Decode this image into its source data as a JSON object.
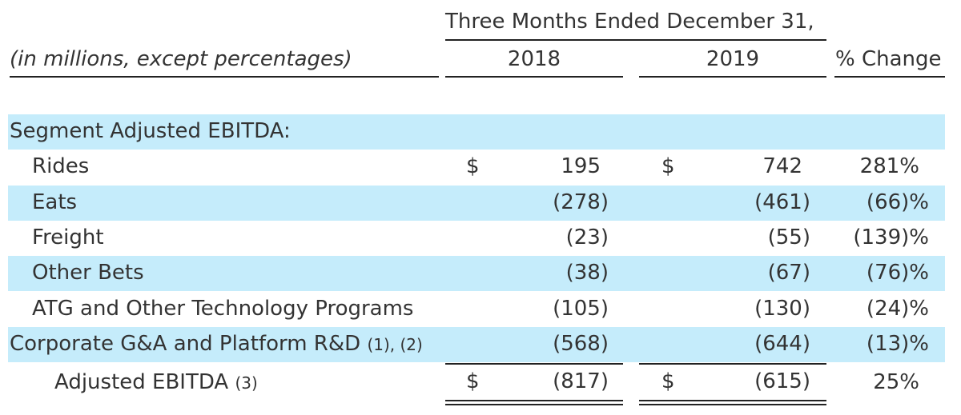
{
  "header": {
    "period_title": "Three Months Ended December 31,",
    "row_label": "(in millions, except percentages)",
    "col_2018": "2018",
    "col_2019": "2019",
    "col_change": "% Change"
  },
  "section_label": "Segment Adjusted EBITDA:",
  "currency_symbol": "$",
  "rows": [
    {
      "label": "Rides",
      "v2018": "195",
      "v2019": "742",
      "change": "281%"
    },
    {
      "label": "Eats",
      "v2018": "(278)",
      "v2019": "(461)",
      "change": "(66)%"
    },
    {
      "label": "Freight",
      "v2018": "(23)",
      "v2019": "(55)",
      "change": "(139)%"
    },
    {
      "label": "Other Bets",
      "v2018": "(38)",
      "v2019": "(67)",
      "change": "(76)%"
    },
    {
      "label": "ATG and Other Technology Programs",
      "v2018": "(105)",
      "v2019": "(130)",
      "change": "(24)%"
    }
  ],
  "corporate": {
    "label": "Corporate G&A and Platform R&D",
    "footnote": "(1), (2)",
    "v2018": "(568)",
    "v2019": "(644)",
    "change": "(13)%"
  },
  "total": {
    "label": "Adjusted EBITDA",
    "footnote": "(3)",
    "v2018": "(817)",
    "v2019": "(615)",
    "change": "25%"
  },
  "colors": {
    "band": "#c5ecfb",
    "text": "#333333",
    "rule": "#222222"
  }
}
